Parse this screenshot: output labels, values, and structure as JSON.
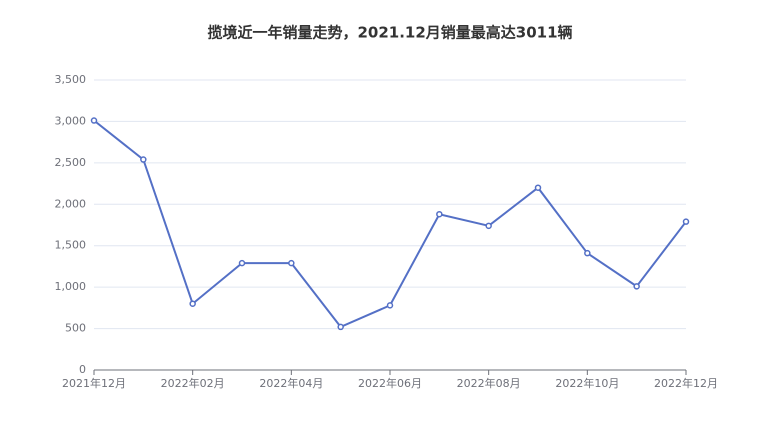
{
  "chart_data": {
    "type": "line",
    "title": "揽境近一年销量走势，2021.12月销量最高达3011辆",
    "categories": [
      "2021年12月",
      null,
      "2022年02月",
      null,
      "2022年04月",
      null,
      "2022年06月",
      null,
      "2022年08月",
      null,
      "2022年10月",
      null,
      "2022年12月"
    ],
    "series": [
      {
        "name": "销量",
        "color": "#5470c6",
        "values": [
          3011,
          2540,
          800,
          1290,
          1290,
          520,
          780,
          1880,
          1740,
          2200,
          1410,
          1010,
          1790
        ]
      }
    ],
    "ylim": [
      0,
      3500
    ],
    "yticks": [
      0,
      500,
      {
        "value": 1000,
        "label": "1,000"
      },
      {
        "value": 1500,
        "label": "1,500"
      },
      {
        "value": 2000,
        "label": "2,000"
      },
      {
        "value": 2500,
        "label": "2,500"
      },
      {
        "value": 3000,
        "label": "3,000"
      },
      {
        "value": 3500,
        "label": "3,500"
      }
    ],
    "grid": true
  }
}
